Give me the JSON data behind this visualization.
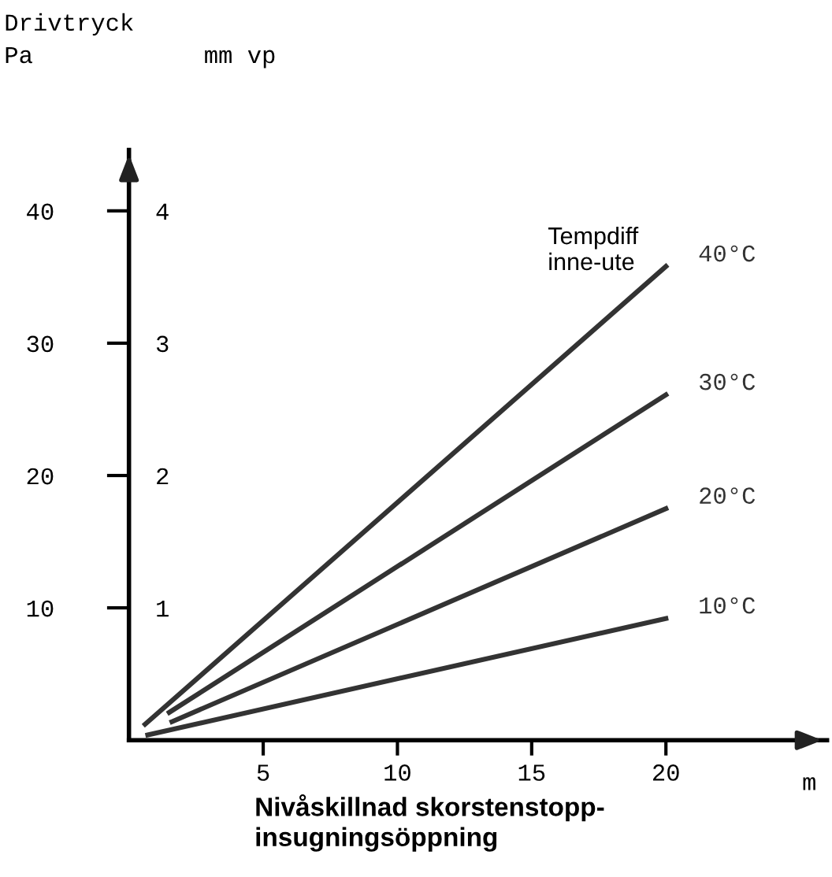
{
  "chart_data": {
    "type": "line",
    "title": "Drivtryck",
    "ylabel": "Pa",
    "y2label": "mm vp",
    "xlabel": "Nivåskillnad skorstenstopp-\ninsugningsöppning",
    "legend_title": "Tempdiff\ninne-ute",
    "annotations": [
      "m"
    ],
    "series": [
      {
        "name": "40°C",
        "color": "#333333",
        "x": [
          0.6,
          20
        ],
        "values": [
          1.2,
          35.8
        ]
      },
      {
        "name": "30°C",
        "color": "#333333",
        "x": [
          1.5,
          20
        ],
        "values": [
          2.1,
          26.1
        ]
      },
      {
        "name": "20°C",
        "color": "#333333",
        "x": [
          1.6,
          20
        ],
        "values": [
          1.4,
          17.5
        ]
      },
      {
        "name": "10°C",
        "color": "#333333",
        "x": [
          0.7,
          20
        ],
        "values": [
          0.4,
          9.2
        ]
      }
    ],
    "xlim": [
      0,
      26
    ],
    "ylim": [
      0,
      44.6
    ],
    "xticks": [
      5,
      10,
      15,
      20
    ],
    "yticks": [
      10,
      20,
      30,
      40
    ],
    "y2lim": [
      0,
      4.46
    ],
    "y2ticks": [
      1,
      2,
      3,
      4
    ],
    "grid": false,
    "legend": false,
    "line_style": "solid",
    "marker": "none"
  }
}
